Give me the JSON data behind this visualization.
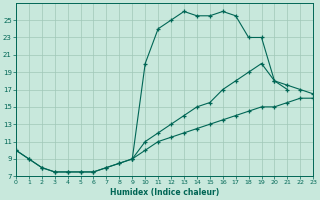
{
  "xlabel": "Humidex (Indice chaleur)",
  "bg_color": "#c8e8dc",
  "grid_color": "#a0c8b8",
  "line_color": "#006655",
  "xlim": [
    0,
    23
  ],
  "ylim": [
    7,
    27
  ],
  "yticks": [
    7,
    9,
    11,
    13,
    15,
    17,
    19,
    21,
    23,
    25
  ],
  "xticks": [
    0,
    1,
    2,
    3,
    4,
    5,
    6,
    7,
    8,
    9,
    10,
    11,
    12,
    13,
    14,
    15,
    16,
    17,
    18,
    19,
    20,
    21,
    22,
    23
  ],
  "line1": {
    "x": [
      0,
      1,
      2,
      3,
      4,
      5,
      6,
      7,
      8,
      9,
      10,
      11,
      12,
      13,
      14,
      15,
      16,
      17,
      18,
      19,
      20,
      21,
      22,
      23
    ],
    "y": [
      10,
      9,
      8,
      7.5,
      7.5,
      7.5,
      7.5,
      8,
      8.5,
      9,
      10,
      11,
      11.5,
      12,
      12.5,
      13,
      13.5,
      14,
      14.5,
      15,
      15,
      15.5,
      16,
      16
    ]
  },
  "line2": {
    "x": [
      0,
      1,
      2,
      3,
      4,
      5,
      6,
      7,
      8,
      9,
      10,
      11,
      12,
      13,
      14,
      15,
      16,
      17,
      18,
      19,
      20,
      21,
      22,
      23
    ],
    "y": [
      10,
      9,
      8,
      7.5,
      7.5,
      7.5,
      7.5,
      8,
      8.5,
      9,
      11,
      12,
      13,
      14,
      15,
      15.5,
      17,
      18,
      19,
      20,
      18,
      17.5,
      17,
      16.5
    ]
  },
  "line3": {
    "x": [
      9,
      10,
      11,
      12,
      13,
      14,
      15,
      16,
      17,
      18,
      19,
      20,
      21
    ],
    "y": [
      9,
      20,
      24,
      25,
      26,
      25.5,
      25.5,
      26,
      25.5,
      23,
      23,
      18,
      17
    ]
  }
}
